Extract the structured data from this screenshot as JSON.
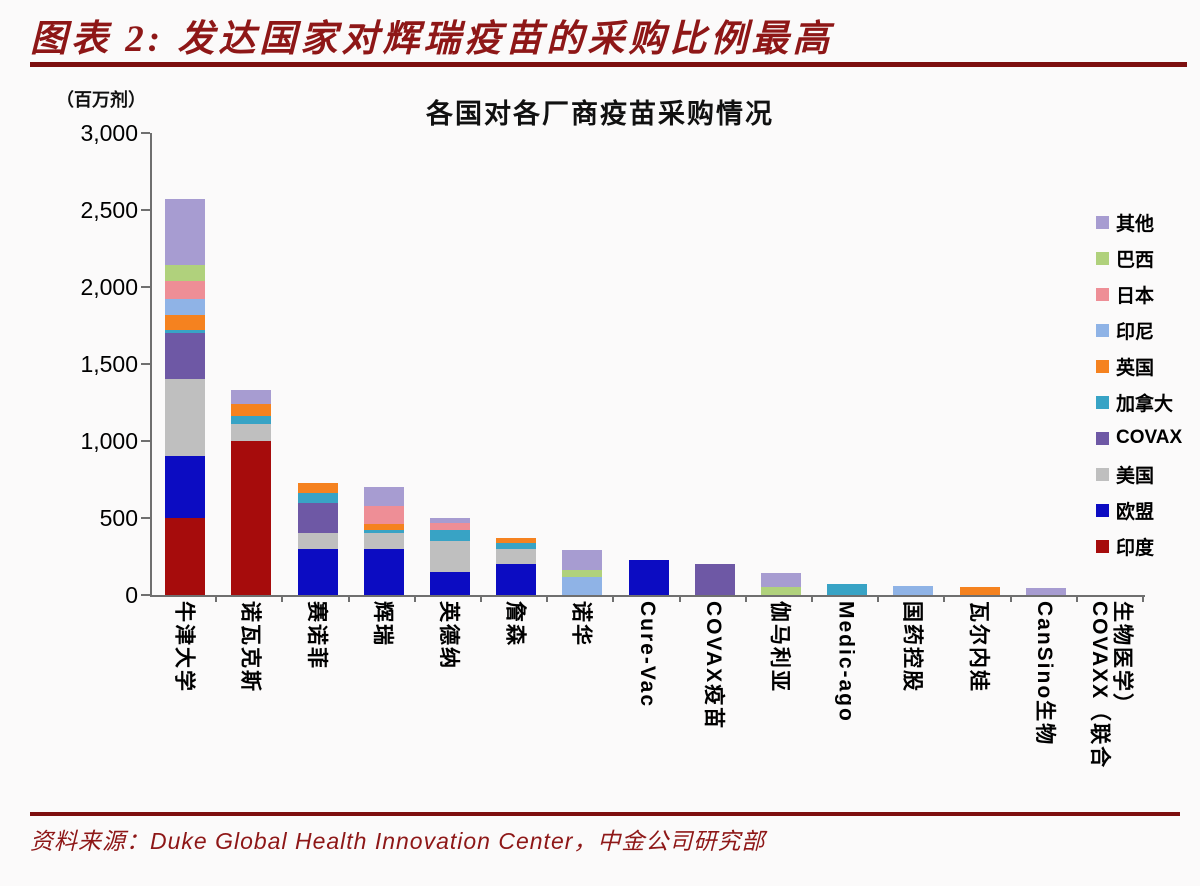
{
  "header": {
    "title": "图表 2:  发达国家对辉瑞疫苗的采购比例最高"
  },
  "footer": {
    "source": "资料来源：Duke Global Health Innovation Center，中金公司研究部"
  },
  "chart_data": {
    "type": "bar",
    "stacked": true,
    "title": "各国对各厂商疫苗采购情况",
    "unit_label": "（百万剂）",
    "xlabel": "",
    "ylabel": "（百万剂）",
    "ylim": [
      0,
      3000
    ],
    "ytick_step": 500,
    "ytick_labels": [
      "0",
      "500",
      "1,000",
      "1,500",
      "2,000",
      "2,500",
      "3,000"
    ],
    "grid": false,
    "legend_position": "right",
    "categories": [
      "牛津大学",
      "诺瓦克斯",
      "赛诺菲",
      "辉瑞",
      "英德纳",
      "詹森",
      "诺华",
      "Cure-Vac",
      "COVAX疫苗",
      "伽马利亚",
      "Medic-ago",
      "国药控股",
      "瓦尔内娃",
      "CanSino生物",
      "COVAXX（联合生物医学）"
    ],
    "series_stack_order": "bottom_to_top",
    "series": [
      {
        "name": "印度",
        "color": "#a60c0c",
        "values": [
          500,
          1000,
          0,
          0,
          0,
          0,
          0,
          0,
          0,
          0,
          0,
          0,
          0,
          0,
          0
        ]
      },
      {
        "name": "欧盟",
        "color": "#0c0cc2",
        "values": [
          400,
          0,
          300,
          300,
          150,
          200,
          0,
          225,
          0,
          0,
          0,
          0,
          0,
          0,
          0
        ]
      },
      {
        "name": "美国",
        "color": "#bfbfbf",
        "values": [
          500,
          110,
          100,
          100,
          200,
          100,
          0,
          0,
          0,
          0,
          0,
          0,
          0,
          0,
          0
        ]
      },
      {
        "name": "COVAX",
        "color": "#6e58a5",
        "values": [
          300,
          0,
          200,
          0,
          0,
          0,
          0,
          0,
          200,
          0,
          0,
          0,
          0,
          0,
          0
        ]
      },
      {
        "name": "加拿大",
        "color": "#38a3c5",
        "values": [
          20,
          55,
          60,
          20,
          70,
          35,
          0,
          0,
          0,
          0,
          70,
          0,
          0,
          0,
          0
        ]
      },
      {
        "name": "英国",
        "color": "#f5821f",
        "values": [
          100,
          75,
          70,
          40,
          0,
          35,
          0,
          0,
          0,
          0,
          0,
          0,
          55,
          0,
          0
        ]
      },
      {
        "name": "印尼",
        "color": "#8fb3e6",
        "values": [
          100,
          0,
          0,
          0,
          0,
          0,
          115,
          0,
          0,
          0,
          0,
          60,
          0,
          0,
          0
        ]
      },
      {
        "name": "日本",
        "color": "#ee8e96",
        "values": [
          120,
          0,
          0,
          120,
          50,
          0,
          0,
          0,
          0,
          0,
          0,
          0,
          0,
          0,
          0
        ]
      },
      {
        "name": "巴西",
        "color": "#b0d17c",
        "values": [
          100,
          0,
          0,
          0,
          0,
          0,
          50,
          0,
          0,
          50,
          0,
          0,
          0,
          0,
          0
        ]
      },
      {
        "name": "其他",
        "color": "#a79cd1",
        "values": [
          430,
          90,
          0,
          120,
          30,
          0,
          130,
          0,
          0,
          90,
          0,
          0,
          0,
          45,
          0
        ]
      }
    ],
    "legend_order_top_to_bottom": [
      "其他",
      "巴西",
      "日本",
      "印尼",
      "英国",
      "加拿大",
      "COVAX",
      "美国",
      "欧盟",
      "印度"
    ],
    "axis_color": "#6f6f6f",
    "accent_color": "#7d0f0f"
  }
}
